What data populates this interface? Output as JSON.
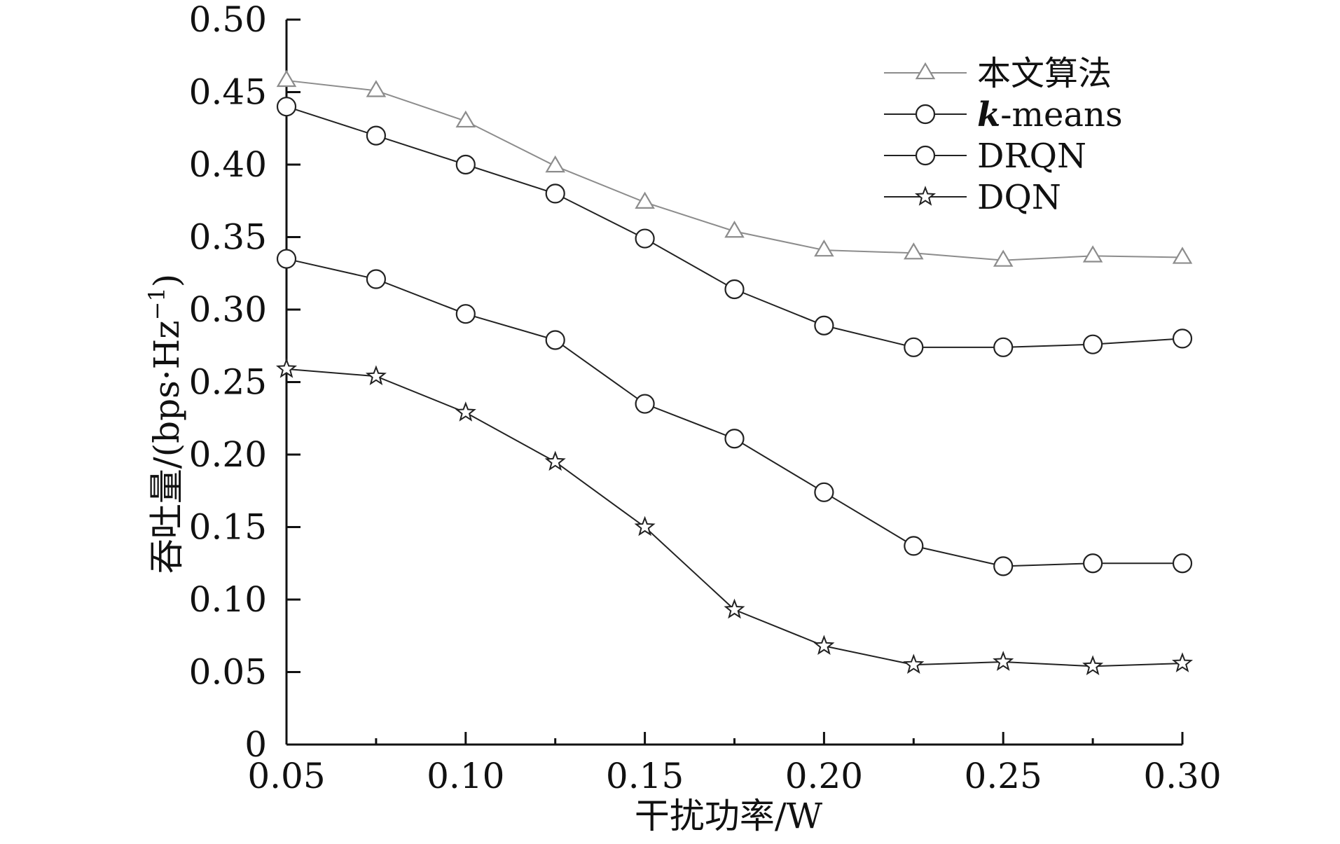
{
  "chart_data": {
    "type": "line",
    "xlabel": "干扰功率/W",
    "ylabel": "吞吐量/(bps·Hz",
    "ylabel_sup": "−1",
    "ylabel_close": ")",
    "xlim": [
      0.05,
      0.3
    ],
    "ylim": [
      0,
      0.5
    ],
    "x_ticks": [
      0.05,
      0.1,
      0.15,
      0.2,
      0.25,
      0.3
    ],
    "x_tick_labels": [
      "0.05",
      "0.10",
      "0.15",
      "0.20",
      "0.25",
      "0.30"
    ],
    "y_ticks": [
      0,
      0.05,
      0.1,
      0.15,
      0.2,
      0.25,
      0.3,
      0.35,
      0.4,
      0.45,
      0.5
    ],
    "y_tick_labels": [
      "0",
      "0.05",
      "0.10",
      "0.15",
      "0.20",
      "0.25",
      "0.30",
      "0.35",
      "0.40",
      "0.45",
      "0.50"
    ],
    "grid": false,
    "legend_position": "top-right",
    "x": [
      0.05,
      0.075,
      0.1,
      0.125,
      0.15,
      0.175,
      0.2,
      0.225,
      0.25,
      0.275,
      0.3
    ],
    "series": [
      {
        "name": "本文算法",
        "marker": "triangle",
        "color": "#8c8c8c",
        "values": [
          0.458,
          0.451,
          0.43,
          0.399,
          0.374,
          0.354,
          0.341,
          0.339,
          0.334,
          0.337,
          0.336
        ]
      },
      {
        "name_italic": "k",
        "name_rest": "-means",
        "marker": "circle",
        "color": "#222222",
        "values": [
          0.44,
          0.42,
          0.4,
          0.38,
          0.349,
          0.314,
          0.289,
          0.274,
          0.274,
          0.276,
          0.28
        ]
      },
      {
        "name": "DRQN",
        "marker": "circle",
        "color": "#222222",
        "values": [
          0.335,
          0.321,
          0.297,
          0.279,
          0.235,
          0.211,
          0.174,
          0.137,
          0.123,
          0.125,
          0.125
        ]
      },
      {
        "name": "DQN",
        "marker": "star",
        "color": "#222222",
        "values": [
          0.259,
          0.254,
          0.229,
          0.195,
          0.15,
          0.093,
          0.068,
          0.055,
          0.057,
          0.054,
          0.056
        ]
      }
    ]
  }
}
